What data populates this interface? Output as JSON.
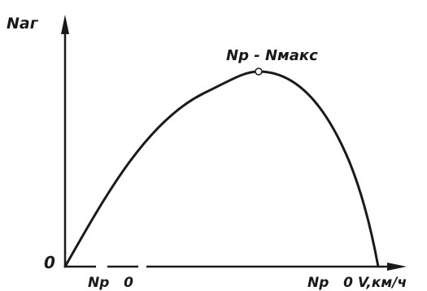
{
  "diagram": {
    "y_axis_label": "Nаг",
    "origin_label": "0",
    "peak_label": "Nр - Nмакс",
    "x_label_start": "Nр   0",
    "x_label_end": "Nр   0 V,км/ч"
  }
}
